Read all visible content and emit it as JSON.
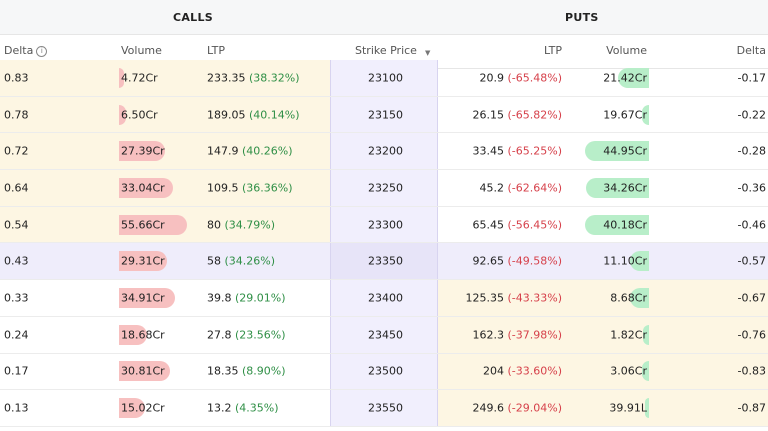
{
  "header": {
    "calls_title": "CALLS",
    "puts_title": "PUTS"
  },
  "columns": {
    "call_delta": "Delta",
    "call_volume": "Volume",
    "call_ltp": "LTP",
    "strike": "Strike Price",
    "put_ltp": "LTP",
    "put_volume": "Volume",
    "put_delta": "Delta"
  },
  "icons": {
    "delta_info": "info-icon",
    "strike_sort": "sort-icon"
  },
  "colors": {
    "itm_bg": "#fdf6e3",
    "atm_bg": "#efedfb",
    "call_bar": "#f7c0c0",
    "put_bar": "#b8eec9",
    "positive": "#2f8f46",
    "negative": "#d6404a"
  },
  "rows": [
    {
      "strike": "23100",
      "call_delta": "0.83",
      "call_volume": "4.72Cr",
      "call_volume_level": 0.01,
      "call_ltp": "233.35",
      "call_change": "(38.32%)",
      "put_ltp": "20.9",
      "put_change": "(-65.48%)",
      "put_volume": "21.42Cr",
      "put_volume_level": 0.45,
      "put_delta": "-0.17",
      "zone": "itm-calls"
    },
    {
      "strike": "23150",
      "call_delta": "0.78",
      "call_volume": "6.50Cr",
      "call_volume_level": 0.04,
      "call_ltp": "189.05",
      "call_change": "(40.14%)",
      "put_ltp": "26.15",
      "put_change": "(-65.82%)",
      "put_volume": "19.67Cr",
      "put_volume_level": 0.05,
      "put_delta": "-0.22",
      "zone": "itm-calls"
    },
    {
      "strike": "23200",
      "call_delta": "0.72",
      "call_volume": "27.39Cr",
      "call_volume_level": 0.66,
      "call_ltp": "147.9",
      "call_change": "(40.26%)",
      "put_ltp": "33.45",
      "put_change": "(-65.25%)",
      "put_volume": "44.95Cr",
      "put_volume_level": 1.0,
      "put_delta": "-0.28",
      "zone": "itm-calls"
    },
    {
      "strike": "23250",
      "call_delta": "0.64",
      "call_volume": "33.04Cr",
      "call_volume_level": 0.78,
      "call_ltp": "109.5",
      "call_change": "(36.36%)",
      "put_ltp": "45.2",
      "put_change": "(-62.64%)",
      "put_volume": "34.26Cr",
      "put_volume_level": 0.98,
      "put_delta": "-0.36",
      "zone": "itm-calls"
    },
    {
      "strike": "23300",
      "call_delta": "0.54",
      "call_volume": "55.66Cr",
      "call_volume_level": 1.0,
      "call_ltp": "80",
      "call_change": "(34.79%)",
      "put_ltp": "65.45",
      "put_change": "(-56.45%)",
      "put_volume": "40.18Cr",
      "put_volume_level": 1.0,
      "put_delta": "-0.46",
      "zone": "itm-calls"
    },
    {
      "strike": "23350",
      "call_delta": "0.43",
      "call_volume": "29.31Cr",
      "call_volume_level": 0.68,
      "call_ltp": "58",
      "call_change": "(34.26%)",
      "put_ltp": "92.65",
      "put_change": "(-49.58%)",
      "put_volume": "11.10Cr",
      "put_volume_level": 0.25,
      "put_delta": "-0.57",
      "zone": "atm"
    },
    {
      "strike": "23400",
      "call_delta": "0.33",
      "call_volume": "34.91Cr",
      "call_volume_level": 0.82,
      "call_ltp": "39.8",
      "call_change": "(29.01%)",
      "put_ltp": "125.35",
      "put_change": "(-43.33%)",
      "put_volume": "8.68Cr",
      "put_volume_level": 0.25,
      "put_delta": "-0.67",
      "zone": "itm-puts"
    },
    {
      "strike": "23450",
      "call_delta": "0.24",
      "call_volume": "18.68Cr",
      "call_volume_level": 0.38,
      "call_ltp": "27.8",
      "call_change": "(23.56%)",
      "put_ltp": "162.3",
      "put_change": "(-37.98%)",
      "put_volume": "1.82Cr",
      "put_volume_level": 0.03,
      "put_delta": "-0.76",
      "zone": "itm-puts"
    },
    {
      "strike": "23500",
      "call_delta": "0.17",
      "call_volume": "30.81Cr",
      "call_volume_level": 0.73,
      "call_ltp": "18.35",
      "call_change": "(8.90%)",
      "put_ltp": "204",
      "put_change": "(-33.60%)",
      "put_volume": "3.06Cr",
      "put_volume_level": 0.05,
      "put_delta": "-0.83",
      "zone": "itm-puts"
    },
    {
      "strike": "23550",
      "call_delta": "0.13",
      "call_volume": "15.02Cr",
      "call_volume_level": 0.34,
      "call_ltp": "13.2",
      "call_change": "(4.35%)",
      "put_ltp": "249.6",
      "put_change": "(-29.04%)",
      "put_volume": "39.91L",
      "put_volume_level": 0.0,
      "put_delta": "-0.87",
      "zone": "itm-puts"
    }
  ]
}
